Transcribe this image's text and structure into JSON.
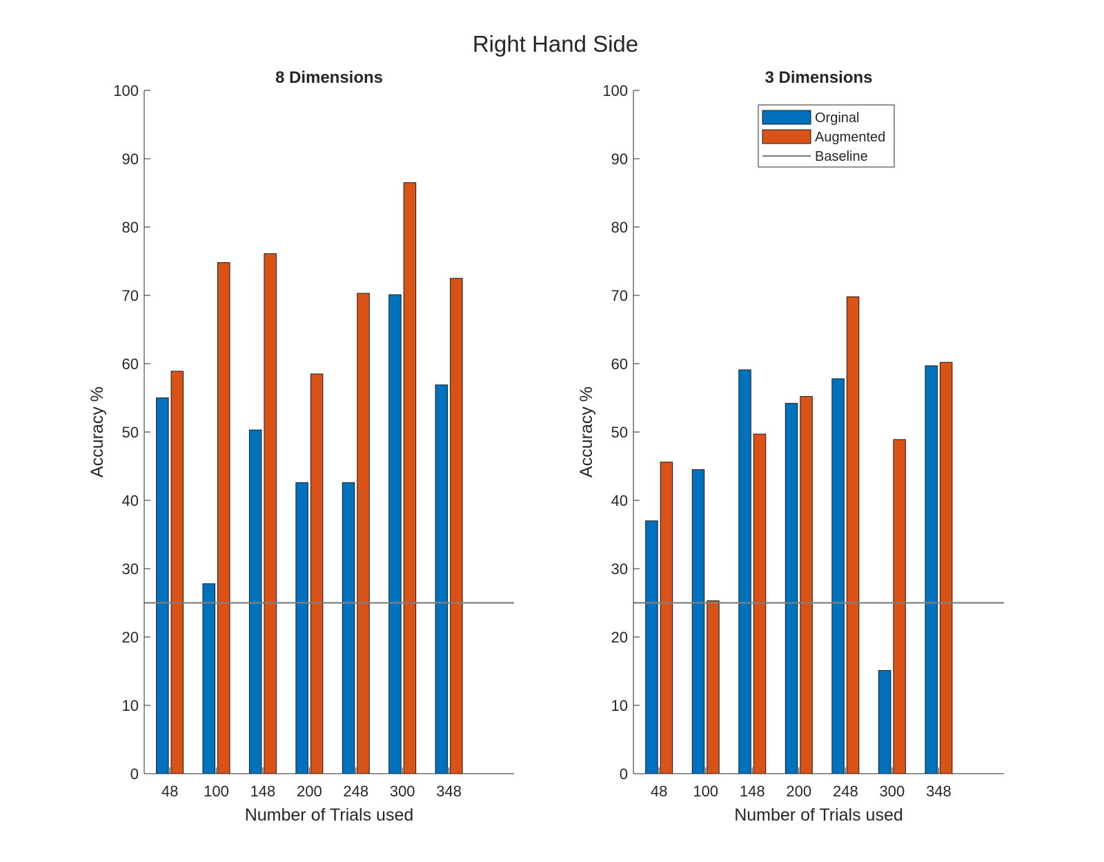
{
  "figure": {
    "title": "Right Hand Side"
  },
  "colors": {
    "original": "#0072BD",
    "augmented": "#D95319",
    "baseline": "#808080",
    "axis": "#262626"
  },
  "legend": {
    "placement": "top-right of right panel",
    "entries": [
      {
        "label": "Orginal",
        "kind": "bar",
        "color": "#0072BD"
      },
      {
        "label": "Augmented",
        "kind": "bar",
        "color": "#D95319"
      },
      {
        "label": "Baseline",
        "kind": "line",
        "color": "#808080"
      }
    ]
  },
  "chart_data": [
    {
      "type": "bar",
      "title": "8 Dimensions",
      "xlabel": "Number of Trials used",
      "ylabel": "Accuracy %",
      "ylim": [
        0,
        100
      ],
      "yticks": [
        0,
        10,
        20,
        30,
        40,
        50,
        60,
        70,
        80,
        90,
        100
      ],
      "categories": [
        "48",
        "100",
        "148",
        "200",
        "248",
        "300",
        "348"
      ],
      "series": [
        {
          "name": "Orginal",
          "values": [
            55,
            27.8,
            50.3,
            42.6,
            42.6,
            70.1,
            56.9
          ]
        },
        {
          "name": "Augmented",
          "values": [
            58.9,
            74.8,
            76.1,
            58.5,
            70.3,
            86.5,
            72.5
          ]
        }
      ],
      "baseline": 25,
      "grid": false,
      "legend": false
    },
    {
      "type": "bar",
      "title": "3 Dimensions",
      "xlabel": "Number of Trials used",
      "ylabel": "Accuracy %",
      "ylim": [
        0,
        100
      ],
      "yticks": [
        0,
        10,
        20,
        30,
        40,
        50,
        60,
        70,
        80,
        90,
        100
      ],
      "categories": [
        "48",
        "100",
        "148",
        "200",
        "248",
        "300",
        "348"
      ],
      "series": [
        {
          "name": "Orginal",
          "values": [
            37,
            44.5,
            59.1,
            54.2,
            57.8,
            15.1,
            59.7
          ]
        },
        {
          "name": "Augmented",
          "values": [
            45.6,
            25.3,
            49.7,
            55.2,
            69.8,
            48.9,
            60.2
          ]
        }
      ],
      "baseline": 25,
      "grid": false,
      "legend": true
    }
  ]
}
